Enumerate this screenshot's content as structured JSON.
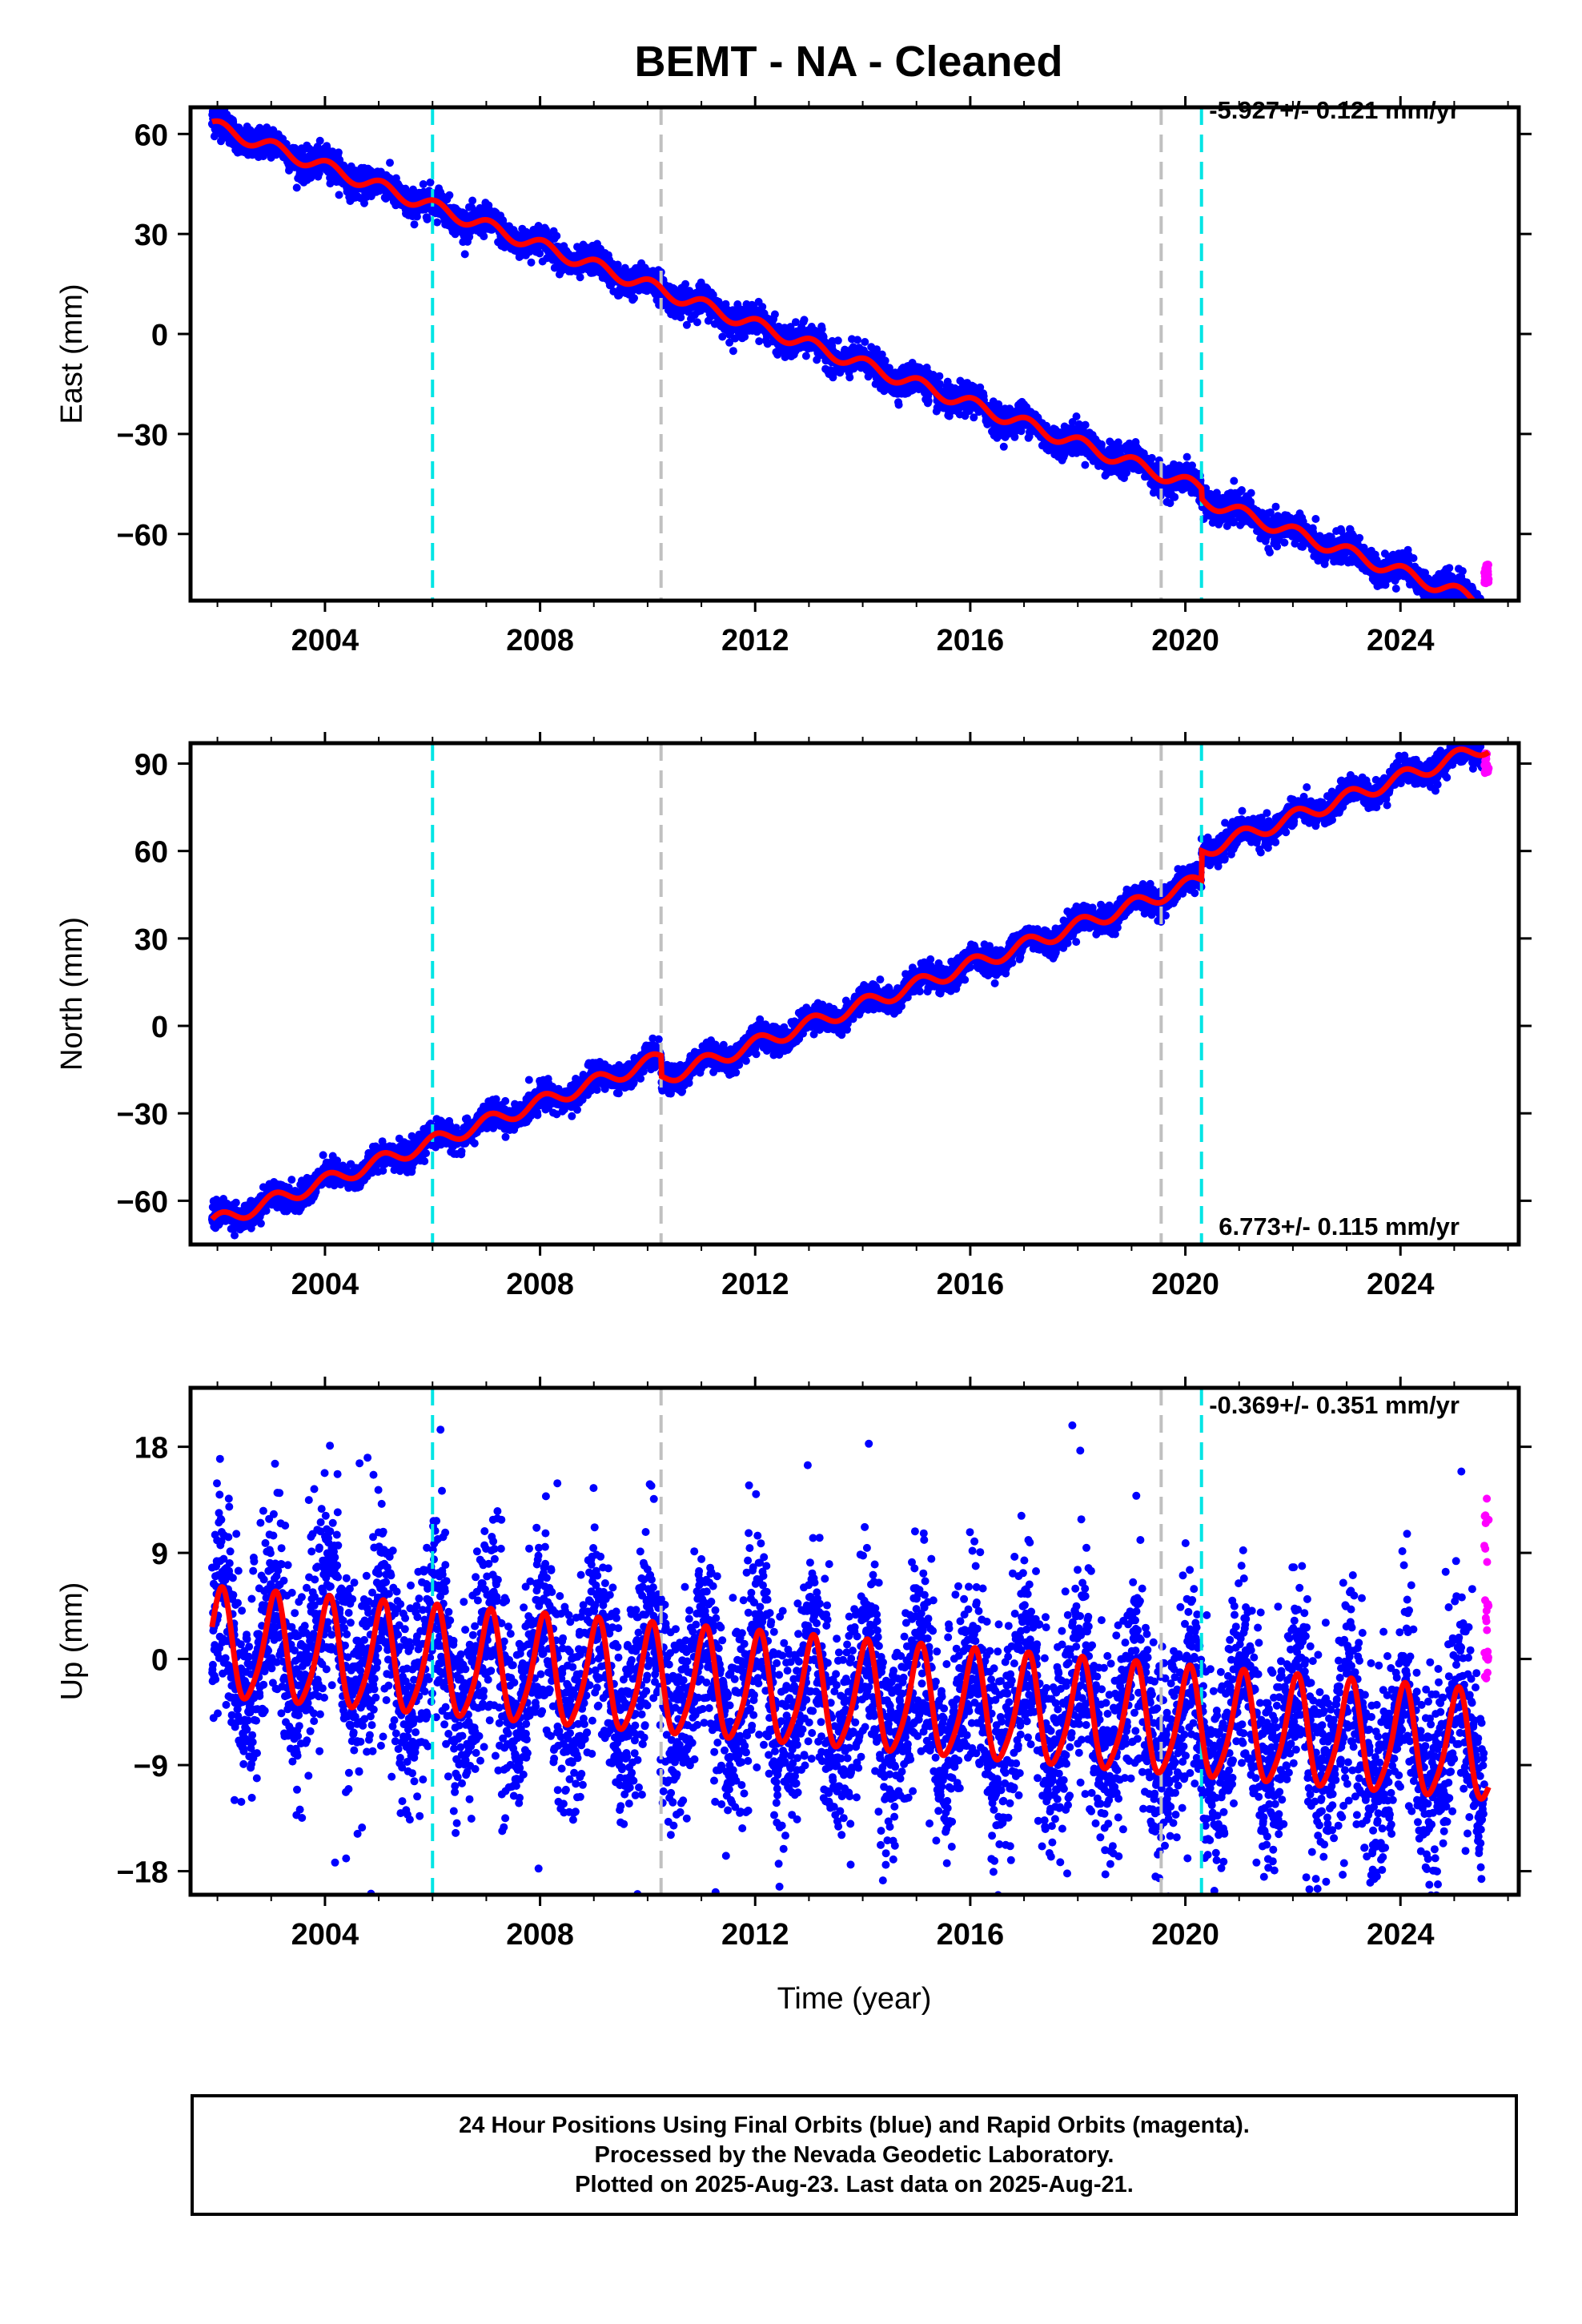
{
  "title": "BEMT  - NA - Cleaned",
  "xlabel": "Time (year)",
  "colors": {
    "final_orbit_points": "#0000ff",
    "rapid_orbit_points": "#ff00ff",
    "model_fit": "#ff0000",
    "antenna_change_lines": "#00e5e5",
    "equipment_change_lines": "#c0c0c0"
  },
  "chart_data": [
    {
      "type": "scatter",
      "ylabel": "East (mm)",
      "rate_label": "-5.927+/- 0.121 mm/yr",
      "xlim": [
        2001.5,
        2026.2
      ],
      "ylim": [
        -80,
        68
      ],
      "yticks": [
        60,
        30,
        0,
        -30,
        -60
      ],
      "ytick_labels": [
        "60",
        "30",
        "0",
        "−30",
        "−60"
      ],
      "xticks": [
        2004,
        2008,
        2012,
        2016,
        2020,
        2024
      ],
      "xtick_labels": [
        "2004",
        "2008",
        "2012",
        "2016",
        "2020",
        "2024"
      ],
      "rate_mm_yr": -5.927,
      "offset_at_2002": 62,
      "seasonal_amplitude": 2.0,
      "steps": [
        {
          "year": 2020.3,
          "size": -3
        }
      ],
      "noise": 2.2,
      "antenna_lines": [
        2006.0,
        2020.3
      ],
      "equipment_lines": [
        2010.25,
        2019.55
      ],
      "rapid_last_value": -72,
      "rapid_range": [
        -75,
        -69
      ],
      "data_span": [
        2001.9,
        2025.64
      ]
    },
    {
      "type": "scatter",
      "ylabel": "North (mm)",
      "rate_label": "6.773+/- 0.115 mm/yr",
      "xlim": [
        2001.5,
        2026.2
      ],
      "ylim": [
        -75,
        97
      ],
      "yticks": [
        90,
        60,
        30,
        0,
        -30,
        -60
      ],
      "ytick_labels": [
        "90",
        "60",
        "30",
        "0",
        "−30",
        "−60"
      ],
      "xticks": [
        2004,
        2008,
        2012,
        2016,
        2020,
        2024
      ],
      "xtick_labels": [
        "2004",
        "2008",
        "2012",
        "2016",
        "2020",
        "2024"
      ],
      "rate_mm_yr": 6.773,
      "offset_at_2002": -67,
      "seasonal_amplitude": 2.5,
      "steps": [
        {
          "year": 2010.25,
          "size": -7
        },
        {
          "year": 2020.3,
          "size": 10
        }
      ],
      "noise": 2.2,
      "antenna_lines": [
        2006.0,
        2020.3
      ],
      "equipment_lines": [
        2010.25,
        2019.55
      ],
      "rapid_last_value": 89,
      "rapid_range": [
        86,
        94
      ],
      "data_span": [
        2001.9,
        2025.64
      ]
    },
    {
      "type": "scatter",
      "ylabel": "Up (mm)",
      "rate_label": "-0.369+/- 0.351 mm/yr",
      "xlim": [
        2001.5,
        2026.2
      ],
      "ylim": [
        -20,
        23
      ],
      "yticks": [
        18,
        9,
        0,
        -9,
        -18
      ],
      "ytick_labels": [
        "18",
        "9",
        "0",
        "−9",
        "−18"
      ],
      "xticks": [
        2004,
        2008,
        2012,
        2016,
        2020,
        2024
      ],
      "xtick_labels": [
        "2004",
        "2008",
        "2012",
        "2016",
        "2020",
        "2024"
      ],
      "rate_mm_yr": -0.369,
      "offset_at_2002": 1.0,
      "seasonal_amplitude": 4.5,
      "steps": [],
      "noise": 4.2,
      "antenna_lines": [
        2006.0,
        2020.3
      ],
      "equipment_lines": [
        2010.25,
        2019.55
      ],
      "rapid_last_value": 0,
      "rapid_range": [
        -3,
        14
      ],
      "data_span": [
        2001.9,
        2025.64
      ]
    }
  ],
  "footer": {
    "line1": "24 Hour Positions Using Final Orbits (blue) and Rapid Orbits (magenta).",
    "line2": "Processed by the Nevada Geodetic Laboratory.",
    "line3": "Plotted on 2025-Aug-23. Last data on 2025-Aug-21."
  }
}
